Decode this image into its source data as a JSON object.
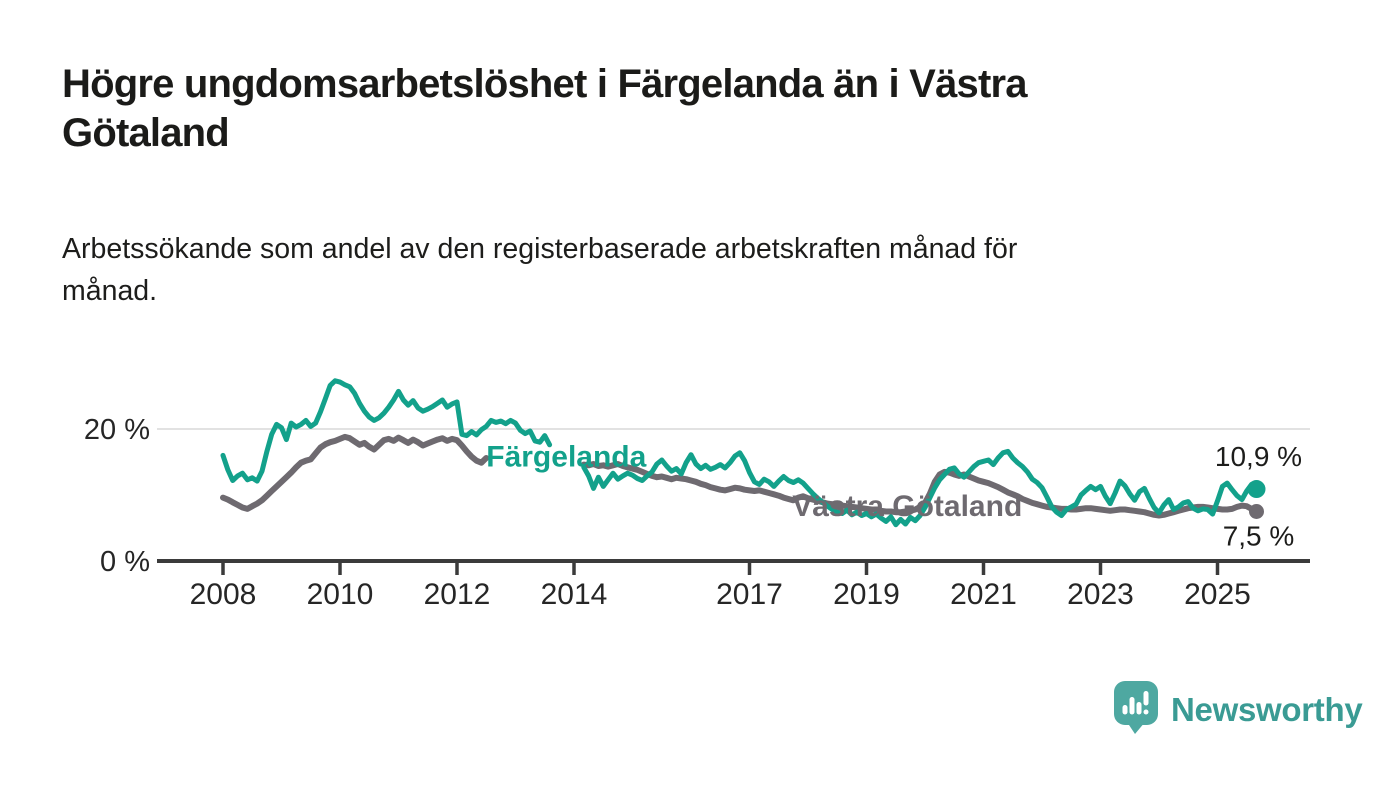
{
  "header": {
    "title": "Högre ungdomsarbetslöshet i Färgelanda än i Västra\nGötaland",
    "subtitle": "Arbetssökande som andel av den registerbaserade arbetskraften månad för\nmånad."
  },
  "footer": {
    "brand": "Newsworthy"
  },
  "colors": {
    "fargelanda": "#13a18b",
    "vastra_gotaland": "#6e6a70",
    "axis": "#3b3b3b",
    "gridline": "#e2e2e2",
    "tick_text": "#262626",
    "value_label_text": "#1d1d1b",
    "logo_icon": "#4ea8a1",
    "logo_text": "#3a9b94",
    "background": "#ffffff"
  },
  "chart_data": {
    "type": "line",
    "title": "Högre ungdomsarbetslöshet i Färgelanda än i Västra Götaland",
    "subtitle": "Arbetssökande som andel av den registerbaserade arbetskraften månad för månad.",
    "unit": "%",
    "grid": "horizontal-only",
    "legend_position": "inline-labels",
    "x_axis": {
      "range": [
        2006.85,
        2026.6
      ],
      "ticks": [
        2008,
        2010,
        2012,
        2014,
        2017,
        2019,
        2021,
        2023,
        2025
      ],
      "tick_labels": [
        "2008",
        "2010",
        "2012",
        "2014",
        "2017",
        "2019",
        "2021",
        "2023",
        "2025"
      ]
    },
    "y_axis": {
      "range": [
        0,
        29
      ],
      "gridlines": [
        20
      ],
      "ticks": [
        {
          "value": 0,
          "label": "0 %"
        },
        {
          "value": 20,
          "label": "20 %"
        }
      ]
    },
    "series": [
      {
        "name": "Västra Götaland",
        "color": "#6e6a70",
        "line_width": 6,
        "end_label": "7,5 %",
        "end_value": 7.5,
        "label_anchor": {
          "year": 2017.73,
          "value": 6.8
        },
        "segments": [
          {
            "start_year": 2008.0,
            "step_years": 0.083333,
            "values": [
              9.6,
              9.3,
              8.9,
              8.5,
              8.1,
              7.9,
              8.3,
              8.7,
              9.2,
              9.9,
              10.6,
              11.3,
              12.0,
              12.7,
              13.4,
              14.2,
              14.9,
              15.2,
              15.4,
              16.3,
              17.2,
              17.7,
              18.0,
              18.2,
              18.5,
              18.8,
              18.6,
              18.1,
              17.6,
              17.9,
              17.3,
              16.9,
              17.6,
              18.3,
              18.5,
              18.2,
              18.7,
              18.3,
              17.9,
              18.4,
              18.0,
              17.5,
              17.8,
              18.1,
              18.4,
              18.6,
              18.2,
              18.5,
              18.3,
              17.5,
              16.6,
              15.8,
              15.2,
              14.9,
              15.6
            ]
          },
          {
            "start_year": 2014.1667,
            "step_years": 0.083333,
            "values": [
              14.6,
              14.5,
              14.7,
              14.4,
              14.5,
              14.3,
              14.5,
              14.7,
              14.4,
              14.2,
              14.0,
              13.8,
              13.5,
              13.2,
              12.9,
              12.7,
              12.8,
              12.6,
              12.4,
              12.6,
              12.5,
              12.4,
              12.2,
              12.0,
              11.7,
              11.5,
              11.2,
              11.0,
              10.8,
              10.7,
              10.9,
              11.1,
              11.0,
              10.8,
              10.7,
              10.6,
              10.7,
              10.5,
              10.3,
              10.1,
              9.9,
              9.6,
              9.4,
              9.2,
              9.6,
              9.8,
              9.5,
              9.3,
              9.1,
              8.9,
              8.7,
              8.6,
              8.5,
              8.4,
              8.3,
              8.2,
              8.1,
              8.0,
              7.9,
              7.8,
              7.7,
              7.6,
              7.5,
              7.5,
              7.4,
              7.4,
              7.5,
              7.6,
              7.8,
              8.2,
              8.8,
              10.2,
              12.0,
              13.1,
              13.5,
              13.4,
              13.1,
              12.9,
              13.1,
              12.8,
              12.5,
              12.2,
              12.0,
              11.8,
              11.5,
              11.2,
              10.8,
              10.4,
              10.1,
              9.8,
              9.4,
              9.1,
              8.8,
              8.6,
              8.4,
              8.2,
              8.1,
              8.0,
              7.9,
              7.9,
              7.8,
              7.8,
              7.9,
              8.0,
              8.0,
              7.9,
              7.8,
              7.7,
              7.6,
              7.7,
              7.8,
              7.8,
              7.7,
              7.6,
              7.5,
              7.4,
              7.2,
              7.0,
              6.9,
              7.0,
              7.2,
              7.4,
              7.6,
              7.8,
              8.0,
              8.1,
              8.2,
              8.2,
              8.1,
              8.0,
              7.9,
              7.8,
              7.8,
              7.9,
              8.2,
              8.4,
              8.3,
              7.9,
              7.5
            ]
          }
        ]
      },
      {
        "name": "Färgelanda",
        "color": "#13a18b",
        "line_width": 5,
        "end_label": "10,9 %",
        "end_value": 10.9,
        "label_anchor": {
          "year": 2012.5,
          "value": 14.3
        },
        "segments": [
          {
            "start_year": 2008.0,
            "step_years": 0.083333,
            "values": [
              16.0,
              13.8,
              12.2,
              12.9,
              13.3,
              12.3,
              12.6,
              12.1,
              13.6,
              16.6,
              19.2,
              20.7,
              20.2,
              18.4,
              20.9,
              20.3,
              20.7,
              21.3,
              20.4,
              20.9,
              22.6,
              24.6,
              26.6,
              27.3,
              27.1,
              26.7,
              26.4,
              25.4,
              23.9,
              22.7,
              21.8,
              21.3,
              21.7,
              22.4,
              23.3,
              24.4,
              25.7,
              24.4,
              23.6,
              24.3,
              23.2,
              22.7,
              23.0,
              23.4,
              23.9,
              24.4,
              23.3,
              23.8,
              24.1,
              19.2,
              19.0,
              19.6,
              19.1,
              19.9,
              20.4,
              21.3,
              21.0,
              21.2,
              20.8,
              21.3,
              20.9,
              19.8,
              19.3,
              19.7,
              18.2,
              18.0,
              19.0,
              17.6
            ]
          },
          {
            "start_year": 2014.1667,
            "step_years": 0.083333,
            "values": [
              14.2,
              12.9,
              11.0,
              12.7,
              11.3,
              12.3,
              13.3,
              12.4,
              12.9,
              13.3,
              13.0,
              12.5,
              12.2,
              12.9,
              13.5,
              14.7,
              15.3,
              14.4,
              13.6,
              14.0,
              13.2,
              14.9,
              16.1,
              14.7,
              14.0,
              14.5,
              13.9,
              14.2,
              14.6,
              14.1,
              14.9,
              15.9,
              16.4,
              15.2,
              13.4,
              12.0,
              11.6,
              12.4,
              12.0,
              11.3,
              12.1,
              12.8,
              12.2,
              11.9,
              12.3,
              11.8,
              11.0,
              10.2,
              9.5,
              8.9,
              8.3,
              7.8,
              7.4,
              7.2,
              7.7,
              7.0,
              7.4,
              6.9,
              7.2,
              6.7,
              7.1,
              6.5,
              6.0,
              6.7,
              5.5,
              6.3,
              5.6,
              6.6,
              6.1,
              6.9,
              8.1,
              9.6,
              11.1,
              12.3,
              13.1,
              13.9,
              14.1,
              13.2,
              12.7,
              13.5,
              14.3,
              14.9,
              15.1,
              15.3,
              14.6,
              15.6,
              16.4,
              16.6,
              15.6,
              14.9,
              14.3,
              13.5,
              12.4,
              11.9,
              11.1,
              9.7,
              8.2,
              7.4,
              6.9,
              7.8,
              8.2,
              8.6,
              10.0,
              10.7,
              11.3,
              10.8,
              11.3,
              9.8,
              8.7,
              10.3,
              12.1,
              11.4,
              10.2,
              9.2,
              10.5,
              11.0,
              9.5,
              8.1,
              7.3,
              8.5,
              9.3,
              7.8,
              8.2,
              8.8,
              9.0,
              8.0,
              7.6,
              7.9,
              7.8,
              7.1,
              9.1,
              11.3,
              11.8,
              10.8,
              9.9,
              9.3,
              10.6,
              11.6,
              10.9
            ]
          }
        ]
      }
    ]
  }
}
